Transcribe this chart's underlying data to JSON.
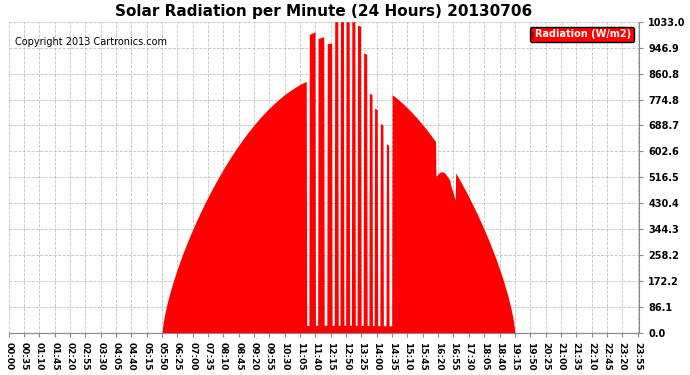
{
  "title": "Solar Radiation per Minute (24 Hours) 20130706",
  "copyright": "Copyright 2013 Cartronics.com",
  "legend_label": "Radiation (W/m2)",
  "y_ticks": [
    0.0,
    86.1,
    172.2,
    258.2,
    344.3,
    430.4,
    516.5,
    602.6,
    688.7,
    774.8,
    860.8,
    946.9,
    1033.0
  ],
  "ymax": 1033.0,
  "ymin": 0.0,
  "fill_color": "#FF0000",
  "background_color": "#FFFFFF",
  "grid_color": "#AAAAAA",
  "title_fontsize": 11,
  "copyright_fontsize": 7,
  "tick_interval_min": 35,
  "sunrise_min": 350,
  "sunset_min": 1155,
  "solar_noon_min": 770,
  "peak_radiation": 860.0
}
